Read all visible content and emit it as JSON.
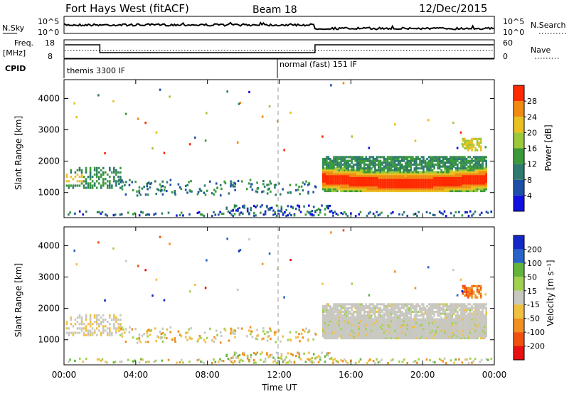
{
  "header": {
    "title": "Fort Hays West (fitACF)",
    "beam": "Beam 18",
    "date": "12/Dec/2015"
  },
  "sky_panel": {
    "left_label": "N.Sky",
    "left_ticks": [
      "10^5",
      "10^0"
    ],
    "right_label": "N.Search",
    "right_ticks": [
      "10^5",
      "10^0"
    ]
  },
  "freq_panel": {
    "left_label_1": "Freq.",
    "left_label_2": "[MHz]",
    "left_ticks": [
      "18",
      "8"
    ],
    "right_label": "Nave",
    "right_ticks": [
      "60",
      "0"
    ]
  },
  "cpid_panel": {
    "label": "CPID",
    "segments": [
      "themis 3300 IF",
      "normal (fast) 151 IF"
    ]
  },
  "chart_data": [
    {
      "type": "heatmap",
      "name": "power",
      "ylabel": "Slant Range [km]",
      "yticks": [
        "1000",
        "2000",
        "3000",
        "4000"
      ],
      "ylim": [
        200,
        4600
      ],
      "colorbar_label": "Power [dB]",
      "colorbar_ticks": [
        "4",
        "8",
        "12",
        "16",
        "20",
        "24",
        "28"
      ],
      "colorbar_colors": [
        "#1010e0",
        "#1e4fa8",
        "#2e7a6e",
        "#3a9a3a",
        "#9cc83a",
        "#e8c020",
        "#f08a10",
        "#ff2a00"
      ],
      "colorbar_range": [
        0,
        30
      ]
    },
    {
      "type": "heatmap",
      "name": "velocity",
      "ylabel": "Slant Range [km]",
      "yticks": [
        "1000",
        "2000",
        "3000",
        "4000"
      ],
      "ylim": [
        200,
        4600
      ],
      "colorbar_label": "Velocity [m s⁻¹]",
      "colorbar_ticks": [
        "200",
        "100",
        "50",
        "15",
        "-15",
        "-50",
        "-100",
        "-200"
      ],
      "colorbar_colors": [
        "#1428c8",
        "#2864c8",
        "#64b43c",
        "#a0d050",
        "#c8c8c0",
        "#f0c040",
        "#f09020",
        "#f05010",
        "#e81010"
      ],
      "xlabel": "Time UT",
      "xticks": [
        "00:00",
        "04:00",
        "08:00",
        "12:00",
        "16:00",
        "20:00",
        "00:00"
      ],
      "xlim": [
        0,
        24
      ]
    }
  ]
}
